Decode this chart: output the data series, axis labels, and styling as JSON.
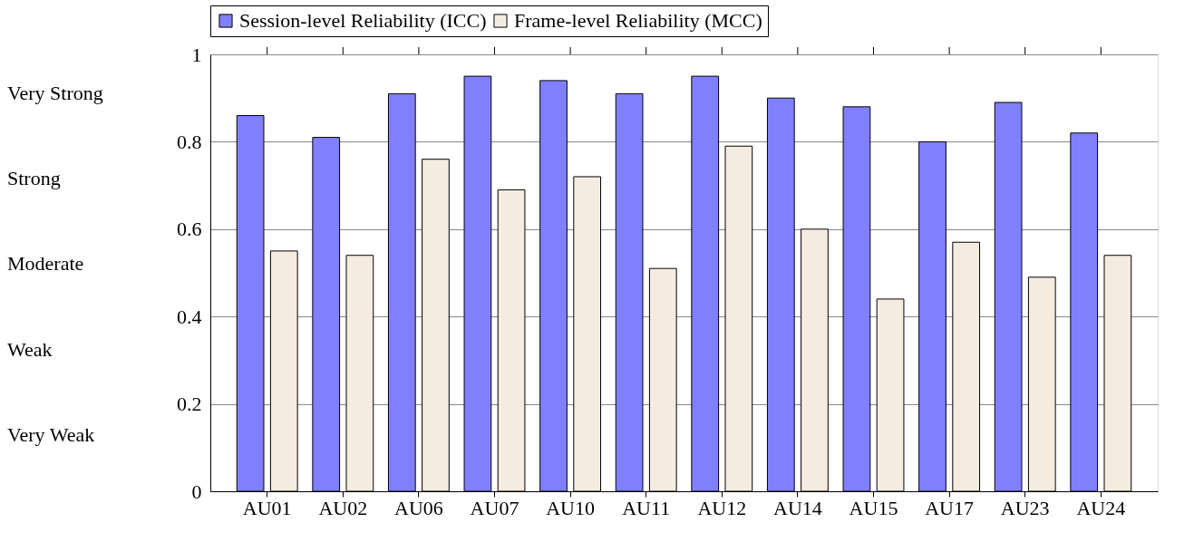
{
  "chart_data": {
    "type": "bar",
    "categories": [
      "AU01",
      "AU02",
      "AU06",
      "AU07",
      "AU10",
      "AU11",
      "AU12",
      "AU14",
      "AU15",
      "AU17",
      "AU23",
      "AU24"
    ],
    "series": [
      {
        "name": "Session-level Reliability (ICC)",
        "color": "#8080ff",
        "values": [
          0.86,
          0.81,
          0.91,
          0.95,
          0.94,
          0.91,
          0.95,
          0.9,
          0.88,
          0.8,
          0.89,
          0.82
        ]
      },
      {
        "name": "Frame-level Reliability (MCC)",
        "color": "#f5ebe0",
        "values": [
          0.55,
          0.54,
          0.76,
          0.69,
          0.72,
          0.51,
          0.79,
          0.6,
          0.44,
          0.57,
          0.49,
          0.54
        ]
      }
    ],
    "ylim": [
      0,
      1
    ],
    "yticks": [
      0,
      0.2,
      0.4,
      0.6,
      0.8,
      1
    ],
    "grid": "y",
    "legend": "top",
    "annotations": [
      "Very Strong",
      "Strong",
      "Moderate",
      "Weak",
      "Very Weak"
    ]
  }
}
